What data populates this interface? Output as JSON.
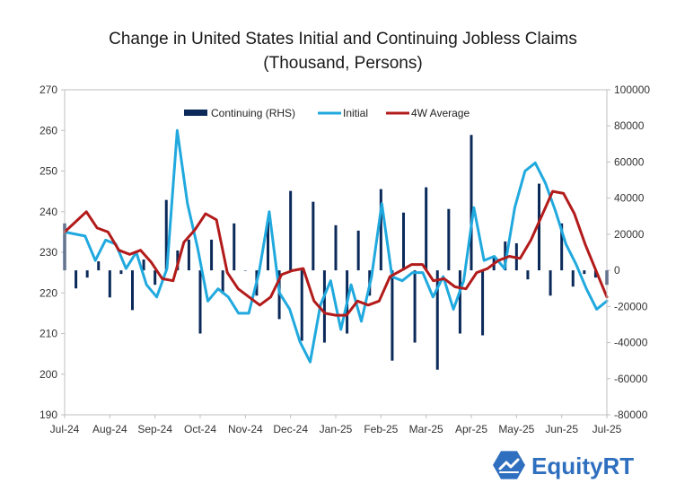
{
  "chart_data": {
    "type": "bar+line",
    "title_line1": "Change in United States Initial and Continuing Jobless Claims",
    "title_line2": "(Thousand, Persons)",
    "left_axis": {
      "min": 190,
      "max": 270,
      "ticks": [
        270,
        260,
        250,
        240,
        230,
        220,
        210,
        200,
        190
      ]
    },
    "right_axis": {
      "min": -80000,
      "max": 100000,
      "ticks": [
        100000,
        80000,
        60000,
        40000,
        20000,
        0,
        -20000,
        -40000,
        -60000,
        -80000
      ]
    },
    "x_labels": [
      "Jul-24",
      "Aug-24",
      "Sep-24",
      "Oct-24",
      "Nov-24",
      "Dec-24",
      "Jan-25",
      "Feb-25",
      "Mar-25",
      "Apr-25",
      "May-25",
      "Jun-25",
      "Jul-25"
    ],
    "weeks_per_label": 4.25,
    "legend": [
      "Continuing (RHS)",
      "Initial",
      "4W Average"
    ],
    "series": [
      {
        "name": "Continuing (RHS)",
        "axis": "right",
        "color": "#0b2a5a",
        "values": [
          26000,
          -10000,
          -4000,
          5000,
          -15000,
          -2000,
          -22000,
          6000,
          -8000,
          39000,
          11000,
          17000,
          -35000,
          17000,
          -13000,
          26000,
          0,
          -14000,
          27000,
          -27000,
          44000,
          -39000,
          38000,
          -40000,
          25000,
          -35000,
          22000,
          -14000,
          45000,
          -50000,
          32000,
          -40000,
          46000,
          -55000,
          34000,
          -35000,
          75000,
          -36000,
          8000,
          16000,
          15000,
          -5000,
          48000,
          -14000,
          26000,
          -9000,
          -2000,
          -4000,
          -8000
        ]
      },
      {
        "name": "Initial",
        "axis": "left",
        "color": "#20a9de",
        "values": [
          235,
          234.5,
          234,
          228,
          233,
          232,
          226,
          230,
          222,
          219,
          226,
          260,
          242,
          231,
          218,
          221,
          219,
          215,
          215,
          225,
          240,
          220,
          216,
          208,
          203,
          217,
          223,
          211,
          222,
          213,
          224,
          242,
          224,
          223,
          225,
          225,
          219,
          224,
          216,
          223,
          241,
          228,
          229,
          226,
          241,
          250,
          252,
          247,
          240,
          232,
          227,
          221,
          216,
          218
        ]
      },
      {
        "name": "4W Average",
        "axis": "left",
        "color": "#b31b1b",
        "values": [
          235,
          237.5,
          240,
          236,
          235,
          230.5,
          229.5,
          230.5,
          227.5,
          223.5,
          223,
          232.5,
          235.5,
          239.5,
          238,
          225,
          221,
          219,
          217,
          219,
          224.5,
          225.5,
          226,
          218,
          215,
          214.5,
          214.5,
          218,
          217,
          218,
          224,
          225.5,
          227,
          227,
          223,
          223.5,
          221.5,
          221,
          225,
          226,
          228,
          229,
          228.5,
          233,
          239,
          245,
          244.5,
          239.5,
          232,
          225.5,
          219
        ]
      }
    ]
  },
  "logo": {
    "text": "EquityRT"
  }
}
